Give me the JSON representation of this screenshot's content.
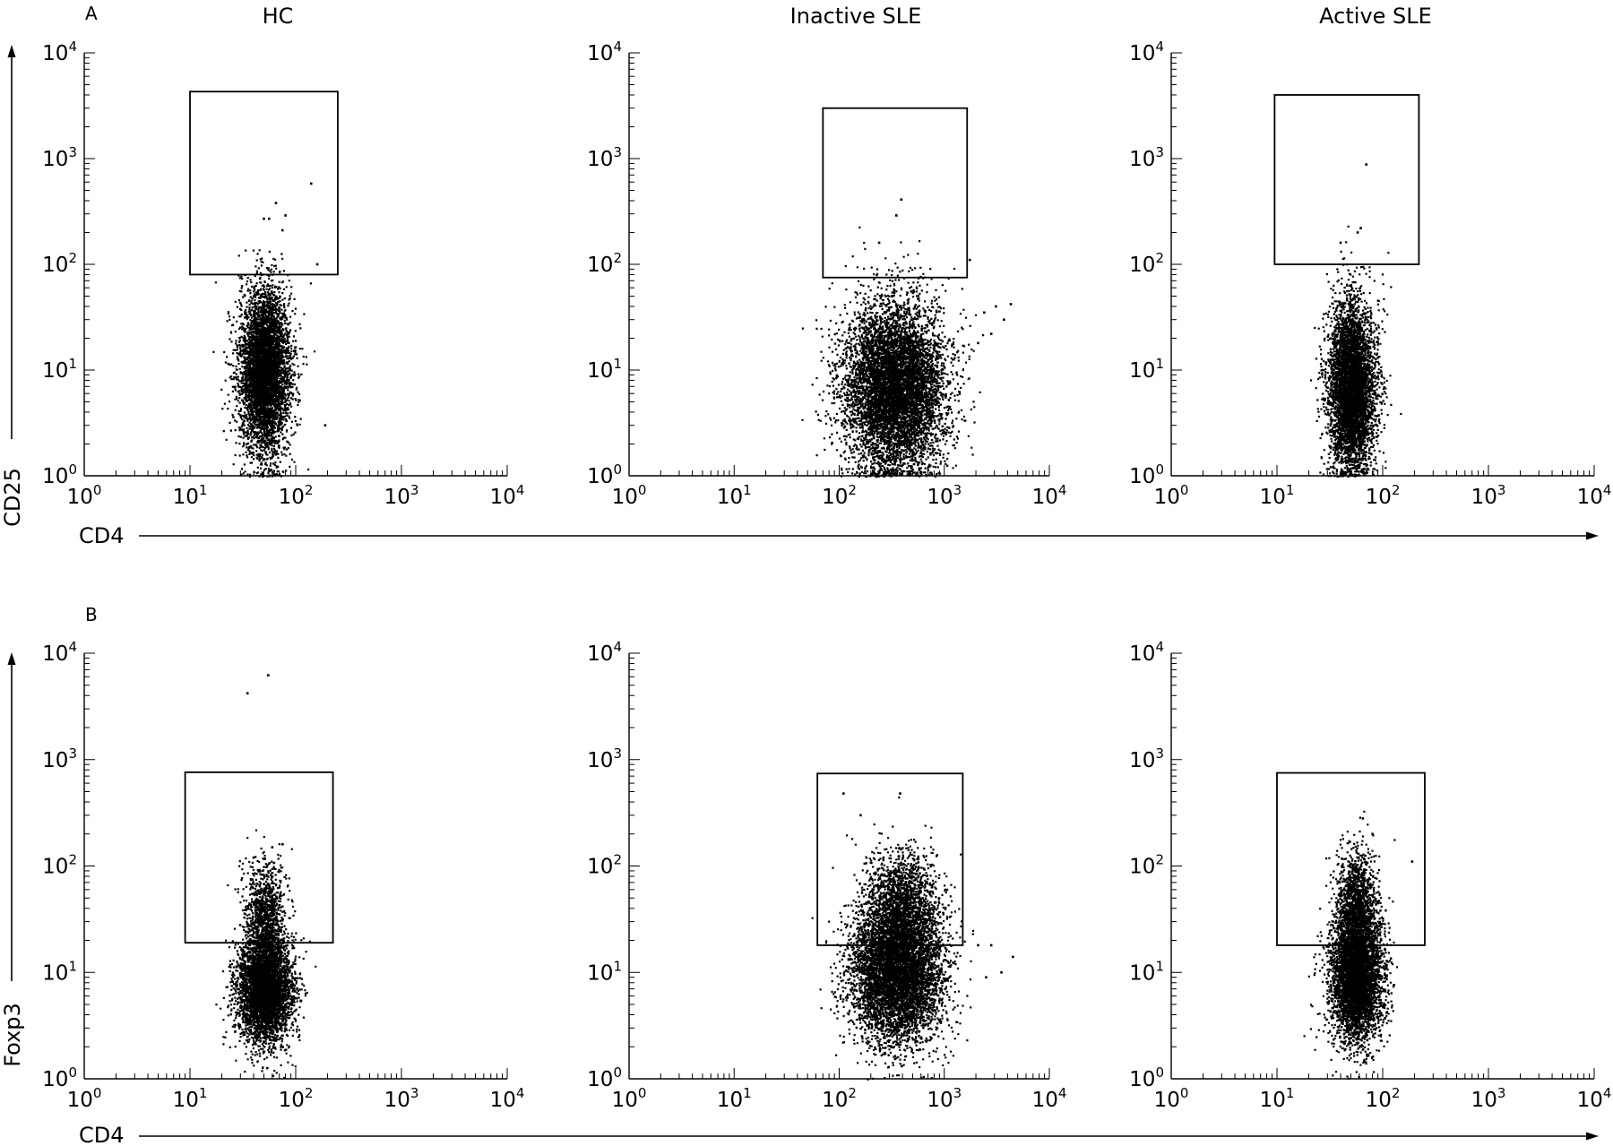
{
  "figure_title": "",
  "panels": [
    {
      "letter": "A",
      "y_axis_label": "CD25",
      "x_axis_label": "CD4"
    },
    {
      "letter": "B",
      "y_axis_label": "Foxp3",
      "x_axis_label": "CD4"
    }
  ],
  "column_titles": [
    "HC",
    "Inactive SLE",
    "Active SLE"
  ],
  "axis_tick_labels": [
    "10^0",
    "10^1",
    "10^2",
    "10^3",
    "10^4"
  ],
  "chart_data": [
    {
      "type": "scatter",
      "panel": "A",
      "group": "HC",
      "xlabel": "CD4",
      "ylabel": "CD25",
      "xscale": "log",
      "yscale": "log",
      "xlim": [
        1,
        10000
      ],
      "ylim": [
        1,
        10000
      ],
      "gate": {
        "x": [
          10,
          250
        ],
        "y": [
          80,
          4300
        ]
      },
      "population": {
        "center": [
          50,
          10
        ],
        "spread_decades": [
          0.12,
          0.38
        ],
        "count": 5000
      },
      "outliers": [
        [
          50,
          270
        ],
        [
          56,
          270
        ],
        [
          65,
          380
        ],
        [
          75,
          210
        ],
        [
          80,
          290
        ],
        [
          140,
          580
        ],
        [
          160,
          100
        ],
        [
          190,
          3
        ]
      ]
    },
    {
      "type": "scatter",
      "panel": "A",
      "group": "Inactive SLE",
      "xlabel": "CD4",
      "ylabel": "CD25",
      "xscale": "log",
      "yscale": "log",
      "xlim": [
        1,
        10000
      ],
      "ylim": [
        1,
        10000
      ],
      "gate": {
        "x": [
          70,
          1650
        ],
        "y": [
          75,
          3000
        ]
      },
      "population": {
        "center": [
          330,
          7
        ],
        "spread_decades": [
          0.24,
          0.4
        ],
        "count": 7000
      },
      "outliers": [
        [
          350,
          290
        ],
        [
          390,
          410
        ],
        [
          240,
          160
        ],
        [
          1750,
          110
        ],
        [
          2400,
          35
        ],
        [
          3100,
          40
        ],
        [
          4300,
          42
        ],
        [
          2800,
          22
        ],
        [
          3700,
          30
        ],
        [
          2100,
          18
        ]
      ]
    },
    {
      "type": "scatter",
      "panel": "A",
      "group": "Active SLE",
      "xlabel": "CD4",
      "ylabel": "CD25",
      "xscale": "log",
      "yscale": "log",
      "xlim": [
        1,
        10000
      ],
      "ylim": [
        1,
        10000
      ],
      "gate": {
        "x": [
          9.5,
          220
        ],
        "y": [
          100,
          4000
        ]
      },
      "population": {
        "center": [
          50,
          7
        ],
        "spread_decades": [
          0.11,
          0.4
        ],
        "count": 5000
      },
      "outliers": [
        [
          62,
          220
        ],
        [
          58,
          200
        ],
        [
          40,
          160
        ],
        [
          70,
          880
        ]
      ]
    },
    {
      "type": "scatter",
      "panel": "B",
      "group": "HC",
      "xlabel": "CD4",
      "ylabel": "Foxp3",
      "xscale": "log",
      "yscale": "log",
      "xlim": [
        1,
        10000
      ],
      "ylim": [
        1,
        10000
      ],
      "gate": {
        "x": [
          9,
          225
        ],
        "y": [
          19,
          760
        ]
      },
      "population": {
        "center": [
          50,
          7
        ],
        "spread_decades": [
          0.13,
          0.25
        ],
        "count": 4200
      },
      "secondary_population": {
        "center": [
          50,
          35
        ],
        "spread_decades": [
          0.09,
          0.25
        ],
        "count": 1000
      },
      "outliers": [
        [
          55,
          6200
        ],
        [
          35,
          4200
        ],
        [
          60,
          150
        ],
        [
          75,
          160
        ],
        [
          40,
          120
        ]
      ]
    },
    {
      "type": "scatter",
      "panel": "B",
      "group": "Inactive SLE",
      "xlabel": "CD4",
      "ylabel": "Foxp3",
      "xscale": "log",
      "yscale": "log",
      "xlim": [
        1,
        10000
      ],
      "ylim": [
        1,
        10000
      ],
      "gate": {
        "x": [
          62,
          1500
        ],
        "y": [
          18,
          740
        ]
      },
      "population": {
        "center": [
          350,
          10
        ],
        "spread_decades": [
          0.22,
          0.32
        ],
        "count": 6000
      },
      "secondary_population": {
        "center": [
          380,
          45
        ],
        "spread_decades": [
          0.18,
          0.25
        ],
        "count": 1600
      },
      "outliers": [
        [
          110,
          480
        ],
        [
          380,
          480
        ],
        [
          160,
          300
        ],
        [
          2100,
          18
        ],
        [
          2800,
          18
        ],
        [
          3500,
          10
        ],
        [
          4500,
          14
        ],
        [
          2500,
          9
        ]
      ]
    },
    {
      "type": "scatter",
      "panel": "B",
      "group": "Active SLE",
      "xlabel": "CD4",
      "ylabel": "Foxp3",
      "xscale": "log",
      "yscale": "log",
      "xlim": [
        1,
        10000
      ],
      "ylim": [
        1,
        10000
      ],
      "gate": {
        "x": [
          10,
          250
        ],
        "y": [
          18,
          750
        ]
      },
      "population": {
        "center": [
          55,
          9
        ],
        "spread_decades": [
          0.12,
          0.3
        ],
        "count": 4500
      },
      "secondary_population": {
        "center": [
          55,
          40
        ],
        "spread_decades": [
          0.1,
          0.28
        ],
        "count": 1400
      },
      "outliers": [
        [
          65,
          280
        ],
        [
          80,
          200
        ],
        [
          190,
          110
        ]
      ]
    }
  ]
}
